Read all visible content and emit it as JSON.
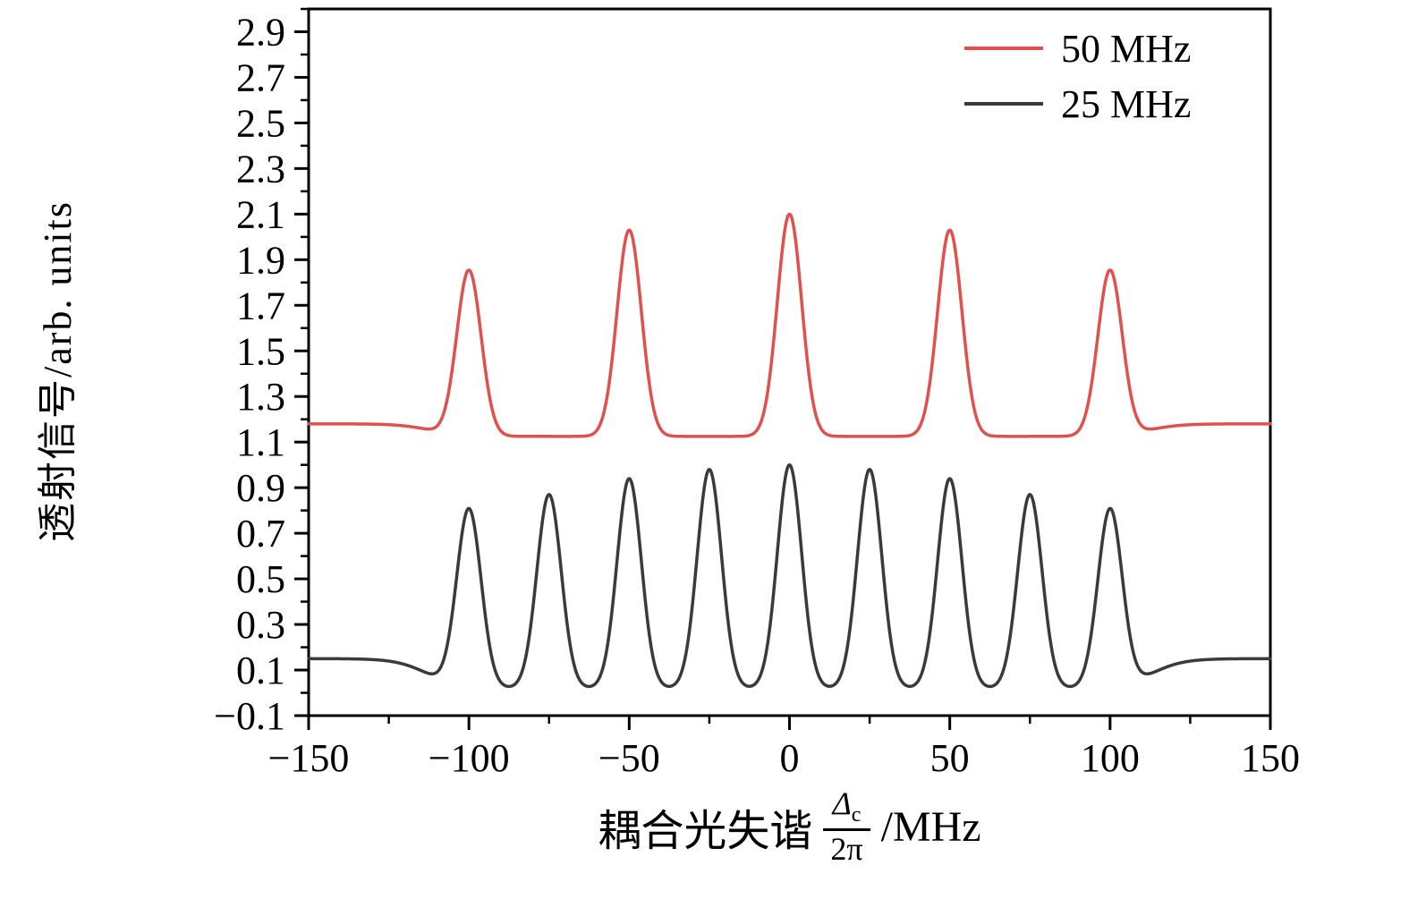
{
  "chart_data": {
    "type": "line",
    "title": "",
    "xlabel": {
      "prefix": "耦合光失谐",
      "numerator": "Δ",
      "numerator_sub": "c",
      "denominator": "2π",
      "suffix": "/MHz"
    },
    "ylabel": "透射信号/arb. units",
    "x_range": [
      -150,
      150
    ],
    "y_range": [
      -0.1,
      3.0
    ],
    "grid": false,
    "x_major_ticks": [
      {
        "v": -150,
        "label": "−150"
      },
      {
        "v": -100,
        "label": "−100"
      },
      {
        "v": -50,
        "label": "−50"
      },
      {
        "v": 0,
        "label": "0"
      },
      {
        "v": 50,
        "label": "50"
      },
      {
        "v": 100,
        "label": "100"
      },
      {
        "v": 150,
        "label": "150"
      }
    ],
    "x_minor_step": 25,
    "y_major_ticks": [
      {
        "v": -0.1,
        "label": "−0.1"
      },
      {
        "v": 0.1,
        "label": "0.1"
      },
      {
        "v": 0.3,
        "label": "0.3"
      },
      {
        "v": 0.5,
        "label": "0.5"
      },
      {
        "v": 0.7,
        "label": "0.7"
      },
      {
        "v": 0.9,
        "label": "0.9"
      },
      {
        "v": 1.1,
        "label": "1.1"
      },
      {
        "v": 1.3,
        "label": "1.3"
      },
      {
        "v": 1.5,
        "label": "1.5"
      },
      {
        "v": 1.7,
        "label": "1.7"
      },
      {
        "v": 1.9,
        "label": "1.9"
      },
      {
        "v": 2.1,
        "label": "2.1"
      },
      {
        "v": 2.3,
        "label": "2.3"
      },
      {
        "v": 2.5,
        "label": "2.5"
      },
      {
        "v": 2.7,
        "label": "2.7"
      },
      {
        "v": 2.9,
        "label": "2.9"
      }
    ],
    "y_minor_step": 0.1,
    "legend": {
      "position": "top-right",
      "items": [
        {
          "label": "50 MHz",
          "color": "#e0514d"
        },
        {
          "label": "25 MHz",
          "color": "#3a3a3c"
        }
      ]
    },
    "series": [
      {
        "name": "50 MHz",
        "color": "#e0514d",
        "baseline_outer": 1.18,
        "baseline_inner": 1.125,
        "edge": 112,
        "edge_width": 5,
        "peak_sigma": 3.8,
        "peaks": [
          {
            "x": -100,
            "y": 1.85
          },
          {
            "x": -50,
            "y": 2.03
          },
          {
            "x": 0,
            "y": 2.1
          },
          {
            "x": 50,
            "y": 2.03
          },
          {
            "x": 100,
            "y": 1.85
          }
        ]
      },
      {
        "name": "25 MHz",
        "color": "#3a3a3c",
        "baseline_outer": 0.15,
        "baseline_inner": 0.02,
        "edge": 113,
        "edge_width": 5,
        "peak_sigma": 3.8,
        "peaks": [
          {
            "x": -100,
            "y": 0.8
          },
          {
            "x": -75,
            "y": 0.87
          },
          {
            "x": -50,
            "y": 0.94
          },
          {
            "x": -25,
            "y": 0.98
          },
          {
            "x": 0,
            "y": 1.0
          },
          {
            "x": 25,
            "y": 0.98
          },
          {
            "x": 50,
            "y": 0.94
          },
          {
            "x": 75,
            "y": 0.87
          },
          {
            "x": 100,
            "y": 0.8
          }
        ]
      }
    ]
  }
}
